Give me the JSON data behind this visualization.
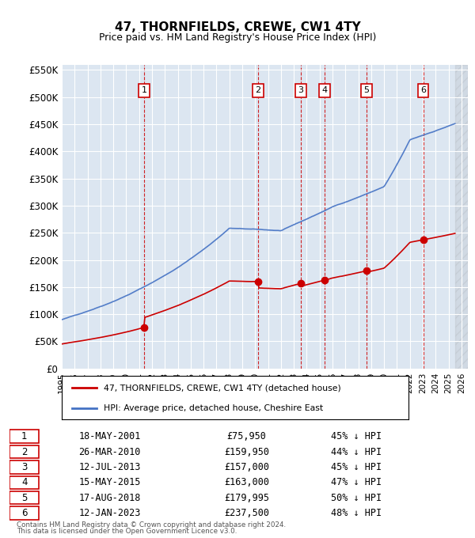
{
  "title": "47, THORNFIELDS, CREWE, CW1 4TY",
  "subtitle": "Price paid vs. HM Land Registry's House Price Index (HPI)",
  "ylim": [
    0,
    560000
  ],
  "yticks": [
    0,
    50000,
    100000,
    150000,
    200000,
    250000,
    300000,
    350000,
    400000,
    450000,
    500000,
    550000
  ],
  "ytick_labels": [
    "£0",
    "£50K",
    "£100K",
    "£150K",
    "£200K",
    "£250K",
    "£300K",
    "£350K",
    "£400K",
    "£450K",
    "£500K",
    "£550K"
  ],
  "bg_color": "#dce6f1",
  "grid_color": "#ffffff",
  "transactions": [
    {
      "num": 1,
      "date_str": "18-MAY-2001",
      "date_x": 2001.38,
      "price": 75950,
      "pct": "45%",
      "dir": "↓"
    },
    {
      "num": 2,
      "date_str": "26-MAR-2010",
      "date_x": 2010.23,
      "price": 159950,
      "pct": "44%",
      "dir": "↓"
    },
    {
      "num": 3,
      "date_str": "12-JUL-2013",
      "date_x": 2013.53,
      "price": 157000,
      "pct": "45%",
      "dir": "↓"
    },
    {
      "num": 4,
      "date_str": "15-MAY-2015",
      "date_x": 2015.37,
      "price": 163000,
      "pct": "47%",
      "dir": "↓"
    },
    {
      "num": 5,
      "date_str": "17-AUG-2018",
      "date_x": 2018.63,
      "price": 179995,
      "pct": "50%",
      "dir": "↓"
    },
    {
      "num": 6,
      "date_str": "12-JAN-2023",
      "date_x": 2023.04,
      "price": 237500,
      "pct": "48%",
      "dir": "↓"
    }
  ],
  "legend_line1": "47, THORNFIELDS, CREWE, CW1 4TY (detached house)",
  "legend_line2": "HPI: Average price, detached house, Cheshire East",
  "footer1": "Contains HM Land Registry data © Crown copyright and database right 2024.",
  "footer2": "This data is licensed under the Open Government Licence v3.0.",
  "red_color": "#cc0000",
  "hpi_color": "#4472c4",
  "xlim_start": 1995.0,
  "xlim_end": 2026.5,
  "xticks": [
    1995,
    1996,
    1997,
    1998,
    1999,
    2000,
    2001,
    2002,
    2003,
    2004,
    2005,
    2006,
    2007,
    2008,
    2009,
    2010,
    2011,
    2012,
    2013,
    2014,
    2015,
    2016,
    2017,
    2018,
    2019,
    2020,
    2021,
    2022,
    2023,
    2024,
    2025,
    2026
  ]
}
